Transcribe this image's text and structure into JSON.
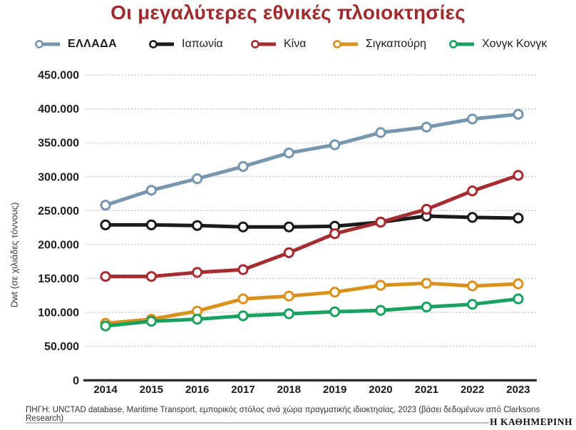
{
  "title": "Οι μεγαλύτερες εθνικές πλοιοκτησίες",
  "source": "ΠΗΓΗ: UNCTAD database, Maritime Transport, εμπορικός στόλος ανά χώρα πραγματικής ιδιοκτησίας, 2023 (βάσει δεδομένων από Clarksons Research)",
  "branding": "Η ΚΑΘΗΜΕΡΙΝΗ",
  "chart_data": {
    "type": "line",
    "x": [
      "2014",
      "2015",
      "2016",
      "2017",
      "2018",
      "2019",
      "2020",
      "2021",
      "2022",
      "2023"
    ],
    "xlabel": "",
    "ylabel": "Dwt (σε χιλιάδες τόννους)",
    "ylim": [
      0,
      450000
    ],
    "ytick_step": 50000,
    "ytick_labels": [
      "0",
      "50.000",
      "100.000",
      "150.000",
      "200.000",
      "250.000",
      "300.000",
      "350.000",
      "400.000",
      "450.000"
    ],
    "grid": "horizontal-dotted",
    "legend_position": "top",
    "marker": "open-circle",
    "series": [
      {
        "name": "ΕΛΛΑΔΑ",
        "color": "#7596ac",
        "values": [
          258000,
          280000,
          297000,
          315000,
          335000,
          347000,
          365000,
          373000,
          385000,
          392000
        ]
      },
      {
        "name": "Ιαπωνία",
        "color": "#1b1b1b",
        "values": [
          229000,
          229000,
          228000,
          226000,
          226000,
          227000,
          233000,
          242000,
          240000,
          239000
        ]
      },
      {
        "name": "Κίνα",
        "color": "#a52c30",
        "values": [
          153000,
          153000,
          159000,
          163000,
          188000,
          216000,
          233000,
          252000,
          279000,
          302000
        ]
      },
      {
        "name": "Σιγκαπούρη",
        "color": "#d9901d",
        "values": [
          84000,
          90000,
          102000,
          120000,
          124000,
          130000,
          140000,
          143000,
          139000,
          142000
        ]
      },
      {
        "name": "Χονγκ Κονγκ",
        "color": "#1aa15f",
        "values": [
          80000,
          87000,
          90000,
          95000,
          98000,
          101000,
          103000,
          108000,
          112000,
          120000
        ]
      }
    ]
  }
}
